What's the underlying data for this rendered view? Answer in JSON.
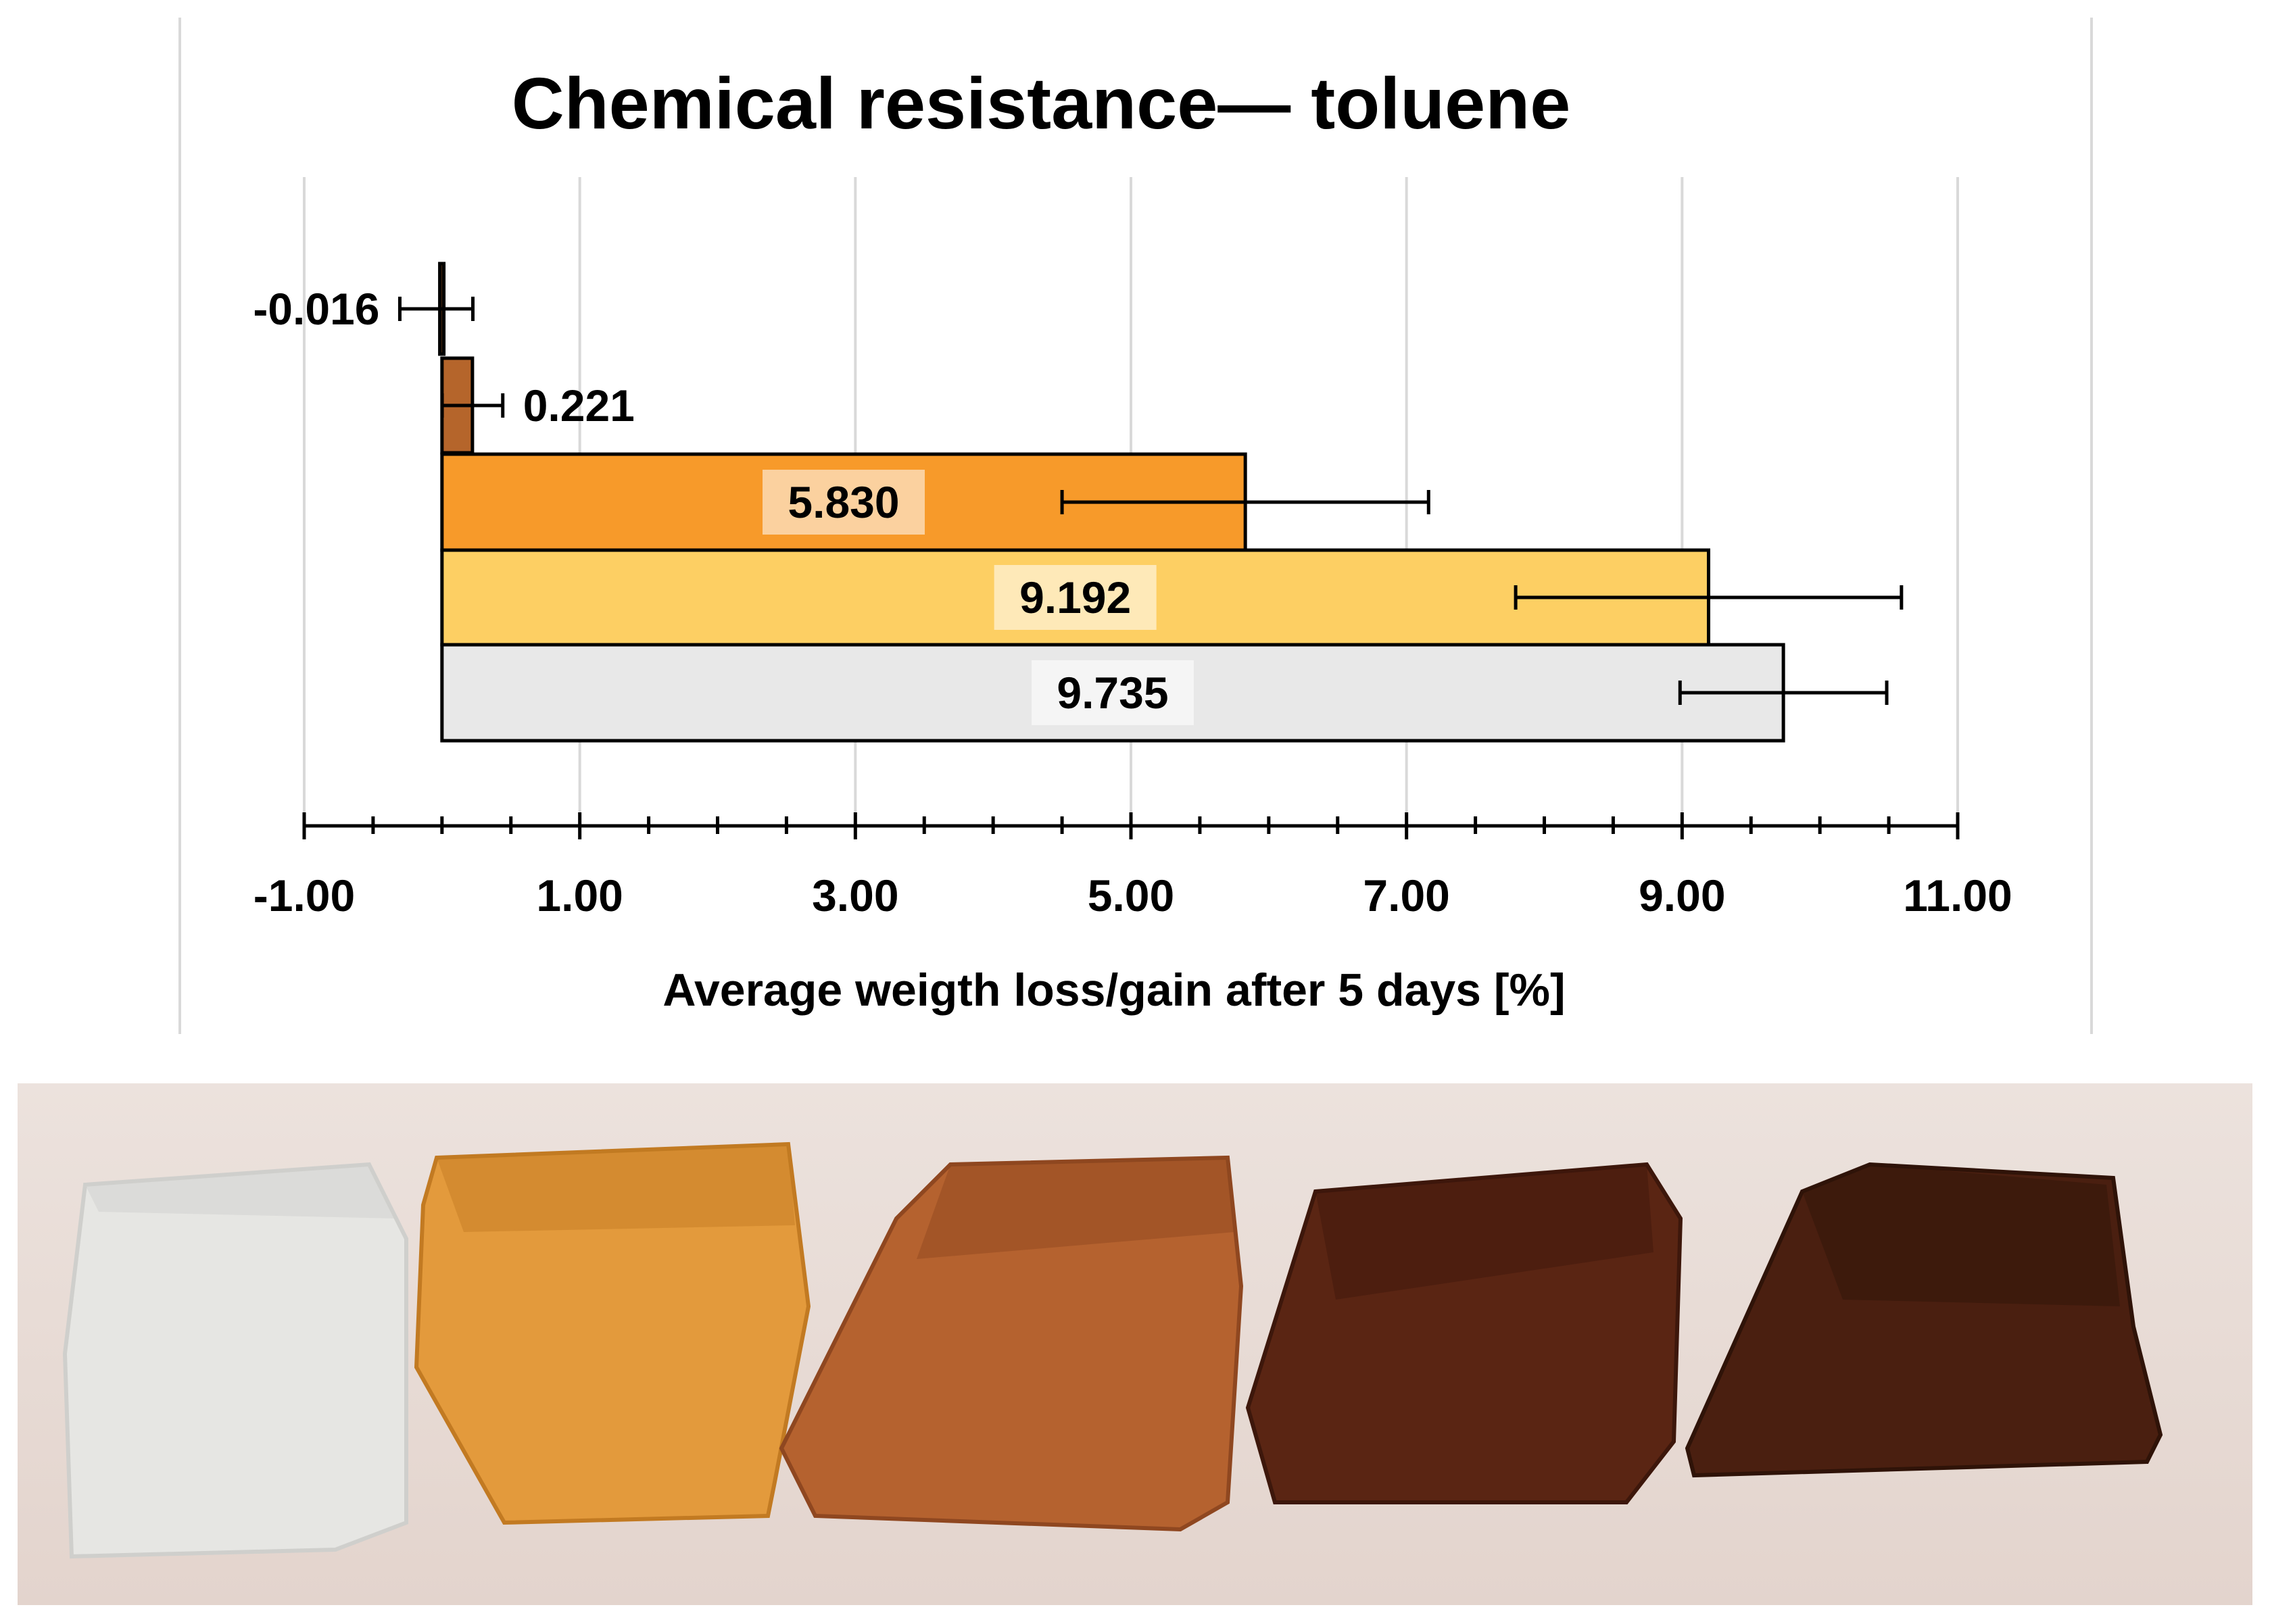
{
  "chart_data": {
    "type": "bar",
    "orientation": "horizontal",
    "title": "Chemical resistance— toluene",
    "xlabel": "Average weigth loss/gain after 5 days [%]",
    "ylabel": "",
    "xlim": [
      -1.0,
      11.0
    ],
    "x_ticks": [
      "-1.00",
      "1.00",
      "3.00",
      "5.00",
      "7.00",
      "9.00",
      "11.00"
    ],
    "x_tick_values": [
      -1,
      1,
      3,
      5,
      7,
      9,
      11
    ],
    "grid": true,
    "legend": "none",
    "bars": [
      {
        "value": -0.016,
        "label": "-0.016",
        "error_low": 0.29,
        "error_high": 0.24,
        "color": "#4a2a12"
      },
      {
        "value": 0.221,
        "label": "0.221",
        "error_low": 0.22,
        "error_high": 0.22,
        "color": "#b5652b"
      },
      {
        "value": 5.83,
        "label": "5.830",
        "error_low": 1.33,
        "error_high": 1.33,
        "color": "#f79a2a"
      },
      {
        "value": 9.192,
        "label": "9.192",
        "error_low": 1.4,
        "error_high": 1.4,
        "color": "#fdcf63"
      },
      {
        "value": 9.735,
        "label": "9.735",
        "error_low": 0.75,
        "error_high": 0.75,
        "color": "#e8e8e8"
      }
    ]
  },
  "photo": {
    "samples": [
      {
        "color": "#e6e6e3",
        "shade": "#cfcfcc"
      },
      {
        "color": "#e39a3c",
        "shade": "#c27a22"
      },
      {
        "color": "#b5622f",
        "shade": "#8f4720"
      },
      {
        "color": "#5a2513",
        "shade": "#3d170b"
      },
      {
        "color": "#4a1f10",
        "shade": "#2f1308"
      }
    ]
  }
}
